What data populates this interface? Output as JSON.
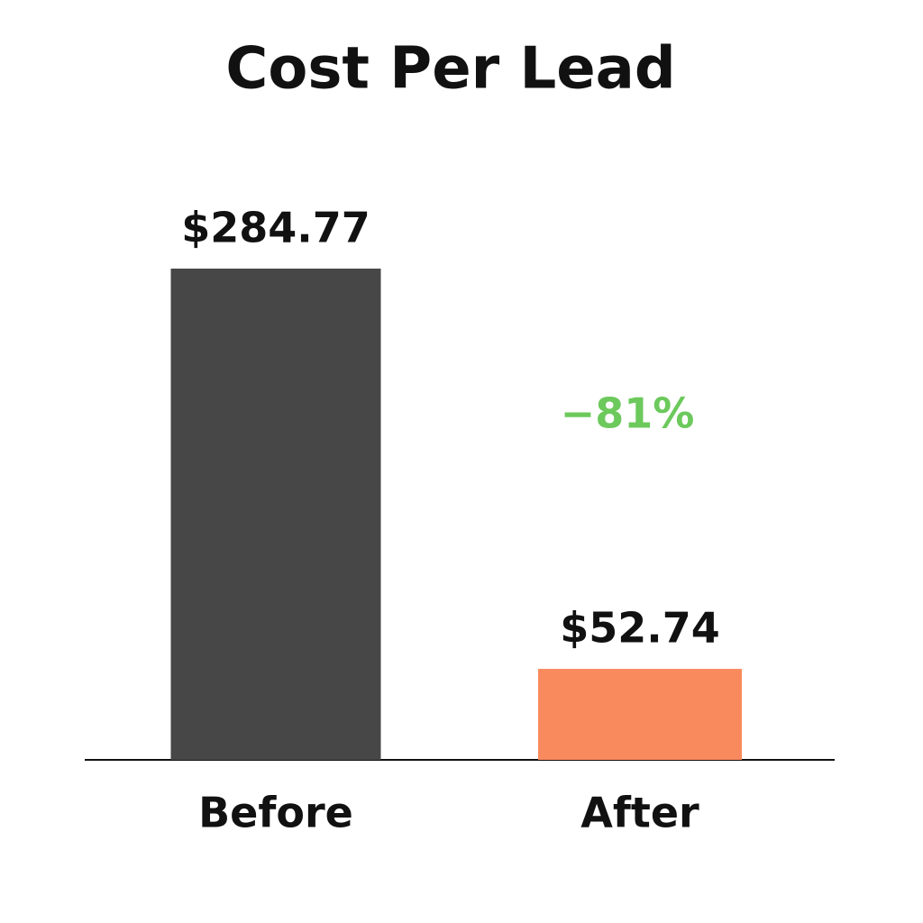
{
  "chart_data": {
    "type": "bar",
    "title": "Cost Per Lead",
    "categories": [
      "Before",
      "After"
    ],
    "values": [
      284.77,
      52.74
    ],
    "value_labels": [
      "$284.77",
      "$52.74"
    ],
    "colors": [
      "#474747",
      "#f98a5e"
    ],
    "annotation": {
      "text": "−81%",
      "color": "#6cc95c"
    }
  }
}
